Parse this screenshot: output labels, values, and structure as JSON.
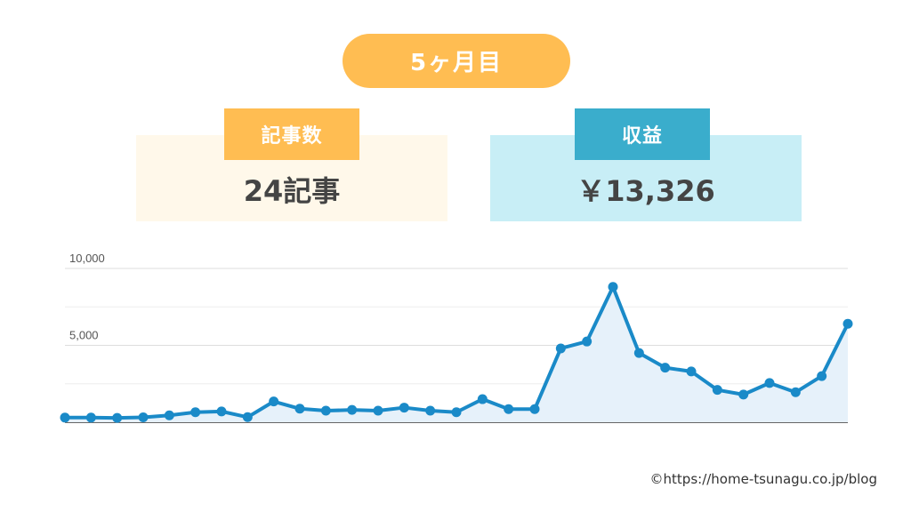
{
  "header": {
    "title": "5ヶ月目"
  },
  "cards": {
    "articles": {
      "label": "記事数",
      "value": "24記事"
    },
    "revenue": {
      "label": "収益",
      "value": "￥13,326"
    }
  },
  "credit": "©https://home-tsunagu.co.jp/blog",
  "colors": {
    "accent_orange": "#ffbd52",
    "accent_blue": "#3aadcc",
    "line": "#1a8ac8",
    "area": "#e6f1fa"
  },
  "chart_data": {
    "type": "area",
    "y_ticks": [
      "10,000",
      "5,000"
    ],
    "y_tick_values": [
      10000,
      5000
    ],
    "ylim": [
      0,
      10000
    ],
    "grid": true,
    "values": [
      300,
      300,
      280,
      320,
      450,
      650,
      700,
      330,
      1350,
      880,
      750,
      800,
      750,
      950,
      750,
      650,
      1500,
      850,
      850,
      4800,
      5250,
      8800,
      4500,
      3550,
      3300,
      2100,
      1800,
      2550,
      1950,
      3000,
      6400
    ]
  }
}
